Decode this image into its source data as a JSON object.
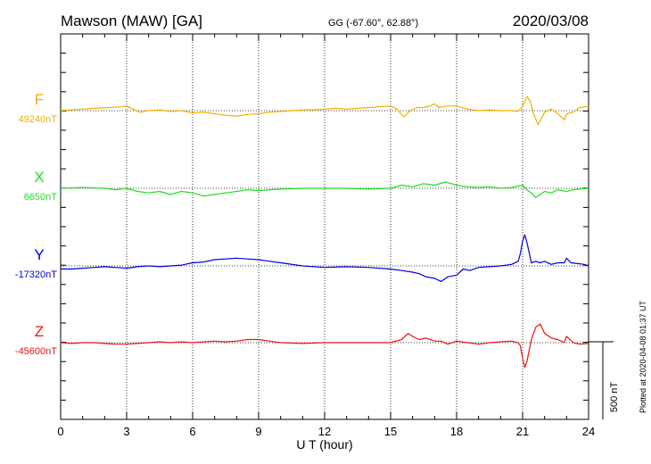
{
  "header": {
    "station": "Mawson (MAW)  [GA]",
    "coords": "GG (-67.60°,  62.88°)",
    "date": "2020/03/08"
  },
  "footer": {
    "plotted": "Plotted at 2020-04-08 01:37 UT"
  },
  "scale_bar": {
    "label": "500 nT",
    "value_nT": 500
  },
  "colors": {
    "F": "#f0b000",
    "X": "#22dd22",
    "Y": "#0000dd",
    "Z": "#ee1111",
    "axis": "#000000"
  },
  "chart_data": {
    "type": "line",
    "xlabel": "U T (hour)",
    "xlim": [
      0,
      24
    ],
    "x_ticks": [
      "0",
      "3",
      "6",
      "9",
      "12",
      "15",
      "18",
      "21",
      "24"
    ],
    "grid": "dotted vertical lines every 3 hours; dotted baseline per component",
    "series": [
      {
        "name": "F",
        "baseline_label": "49240nT",
        "baseline_nT": 49240,
        "x": [
          0,
          0.5,
          1,
          1.5,
          2,
          2.5,
          3,
          3.3,
          3.6,
          4,
          4.5,
          5,
          5.5,
          6,
          6.5,
          7,
          7.5,
          8,
          8.5,
          9,
          9.5,
          10,
          10.5,
          11,
          11.5,
          12,
          12.5,
          13,
          13.5,
          14,
          14.5,
          15,
          15.3,
          15.6,
          15.9,
          16.2,
          16.5,
          16.8,
          17,
          17.2,
          17.5,
          18,
          18.5,
          19,
          19.5,
          20,
          20.5,
          20.8,
          21,
          21.1,
          21.2,
          21.35,
          21.5,
          21.7,
          21.9,
          22,
          22.3,
          22.6,
          22.9,
          23,
          23.3,
          23.6,
          24
        ],
        "y": [
          0,
          5,
          10,
          15,
          18,
          22,
          30,
          10,
          -10,
          0,
          5,
          -5,
          0,
          -15,
          -10,
          -20,
          -30,
          -35,
          -25,
          -20,
          -10,
          -5,
          0,
          5,
          5,
          10,
          15,
          10,
          15,
          20,
          25,
          30,
          10,
          -40,
          0,
          20,
          20,
          30,
          45,
          20,
          30,
          30,
          10,
          0,
          5,
          0,
          0,
          -5,
          30,
          60,
          90,
          60,
          -20,
          -90,
          -40,
          -10,
          10,
          -20,
          -60,
          -20,
          -10,
          20,
          30
        ]
      },
      {
        "name": "X",
        "baseline_label": "6650nT",
        "baseline_nT": 6650,
        "x": [
          0,
          1,
          2,
          2.5,
          3,
          3.5,
          4,
          4.5,
          5,
          5.5,
          6,
          6.5,
          7,
          7.5,
          8,
          8.5,
          9,
          10,
          11,
          12,
          13,
          14,
          15,
          15.5,
          16,
          16.5,
          17,
          17.5,
          18,
          18.5,
          19,
          19.5,
          20,
          20.5,
          21,
          21.2,
          21.4,
          21.6,
          21.8,
          22,
          22.3,
          22.6,
          23,
          23.3,
          23.6,
          24
        ],
        "y": [
          0,
          5,
          0,
          -10,
          0,
          -20,
          -30,
          -20,
          -40,
          -20,
          -30,
          -50,
          -40,
          -30,
          -20,
          -10,
          -15,
          -5,
          0,
          0,
          0,
          -5,
          0,
          20,
          10,
          30,
          20,
          40,
          20,
          10,
          5,
          10,
          0,
          5,
          20,
          -10,
          -30,
          -60,
          -40,
          -20,
          -30,
          -10,
          -20,
          -10,
          -5,
          0
        ]
      },
      {
        "name": "Y",
        "baseline_label": "-17320nT",
        "baseline_nT": -17320,
        "x": [
          0,
          0.5,
          1,
          1.5,
          2,
          2.5,
          3,
          3.5,
          4,
          4.5,
          5,
          5.5,
          6,
          6.5,
          7,
          7.5,
          8,
          8.5,
          9,
          9.5,
          10,
          11,
          12,
          13,
          14,
          15,
          15.5,
          16,
          16.3,
          16.6,
          17,
          17.3,
          17.6,
          18,
          18.3,
          18.6,
          19,
          19.5,
          20,
          20.5,
          20.8,
          20.9,
          21,
          21.1,
          21.2,
          21.4,
          21.6,
          21.8,
          22,
          22.3,
          22.6,
          22.9,
          23,
          23.2,
          23.5,
          23.8,
          24
        ],
        "y": [
          -20,
          -20,
          -15,
          -10,
          -5,
          -10,
          -15,
          -5,
          0,
          -5,
          0,
          5,
          20,
          25,
          40,
          45,
          50,
          45,
          40,
          30,
          20,
          0,
          -10,
          -5,
          -10,
          -20,
          -30,
          -40,
          -50,
          -70,
          -80,
          -100,
          -70,
          -60,
          -20,
          -30,
          -10,
          -5,
          0,
          10,
          30,
          80,
          160,
          200,
          150,
          20,
          30,
          20,
          30,
          10,
          20,
          20,
          50,
          20,
          15,
          10,
          0
        ]
      },
      {
        "name": "Z",
        "baseline_label": "-45600nT",
        "baseline_nT": -45600,
        "x": [
          0,
          0.5,
          1,
          1.5,
          2,
          2.5,
          3,
          3.5,
          4,
          4.5,
          5,
          5.5,
          6,
          6.5,
          7,
          7.5,
          8,
          8.5,
          9,
          9.5,
          10,
          11,
          12,
          13,
          14,
          15,
          15.5,
          15.8,
          16,
          16.3,
          16.6,
          17,
          17.3,
          17.6,
          18,
          18.5,
          19,
          19.5,
          20,
          20.5,
          20.8,
          20.9,
          21,
          21.1,
          21.2,
          21.4,
          21.6,
          21.8,
          22,
          22.3,
          22.6,
          22.9,
          23,
          23.3,
          23.6,
          24
        ],
        "y": [
          0,
          -5,
          0,
          0,
          -5,
          -10,
          -10,
          -5,
          0,
          5,
          0,
          5,
          0,
          5,
          10,
          5,
          10,
          20,
          20,
          10,
          0,
          -5,
          0,
          0,
          0,
          0,
          20,
          60,
          40,
          20,
          30,
          10,
          10,
          -10,
          10,
          0,
          -10,
          0,
          5,
          10,
          0,
          -20,
          -100,
          -160,
          -120,
          20,
          100,
          120,
          60,
          30,
          20,
          0,
          40,
          0,
          -10,
          -5
        ]
      }
    ]
  }
}
